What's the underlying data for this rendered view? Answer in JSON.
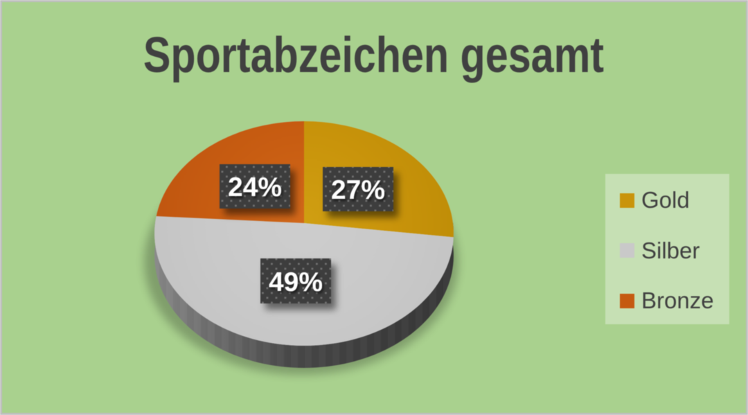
{
  "title": "Sportabzeichen gesamt",
  "chart_data": {
    "type": "pie",
    "style": "3d-pie",
    "title": "Sportabzeichen gesamt",
    "categories": [
      "Gold",
      "Silber",
      "Bronze"
    ],
    "values": [
      27,
      49,
      24
    ],
    "data_labels": [
      "27%",
      "49%",
      "24%"
    ],
    "colors": [
      "#c9940b",
      "#c9c9c9",
      "#c55a11"
    ],
    "start_angle_deg": 0,
    "direction": "clockwise",
    "legend_position": "right",
    "background_color": "#a9d18e",
    "legend_background_color": "#c6e0b4",
    "title_color": "#404040",
    "label_box_color": "#3e3e3e",
    "label_text_color": "#ffffff"
  },
  "legend": {
    "items": [
      {
        "label": "Gold",
        "color": "#c9940b"
      },
      {
        "label": "Silber",
        "color": "#c9c9c9"
      },
      {
        "label": "Bronze",
        "color": "#c55a11"
      }
    ]
  },
  "frame": {
    "border_color": "#bfbfbf"
  }
}
